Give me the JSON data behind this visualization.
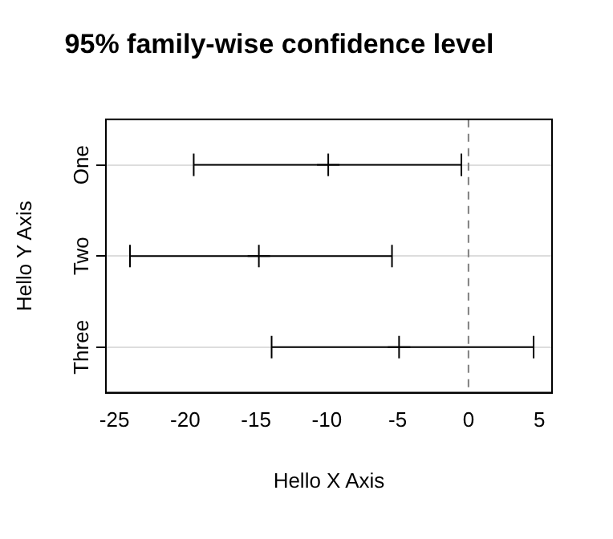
{
  "chart_data": {
    "type": "scatter",
    "orientation": "horizontal",
    "title": "95% family-wise confidence level",
    "xlabel": "Hello X Axis",
    "ylabel": "Hello Y Axis",
    "categories": [
      "One",
      "Two",
      "Three"
    ],
    "values": [
      -9.9,
      -14.8,
      -4.9
    ],
    "errors": [
      [
        -19.4,
        -0.5
      ],
      [
        -23.9,
        -5.4
      ],
      [
        -13.9,
        4.6
      ]
    ],
    "color": "#000000",
    "marker": "cross",
    "xlim": [
      -25.6,
      5.9
    ],
    "xticks": [
      -25,
      -20,
      -15,
      -10,
      -5,
      0,
      5
    ],
    "grid": "y",
    "ref_lines": [
      {
        "axis": "x",
        "value": 0,
        "color": "#808080",
        "line_style": "dashed"
      }
    ]
  }
}
